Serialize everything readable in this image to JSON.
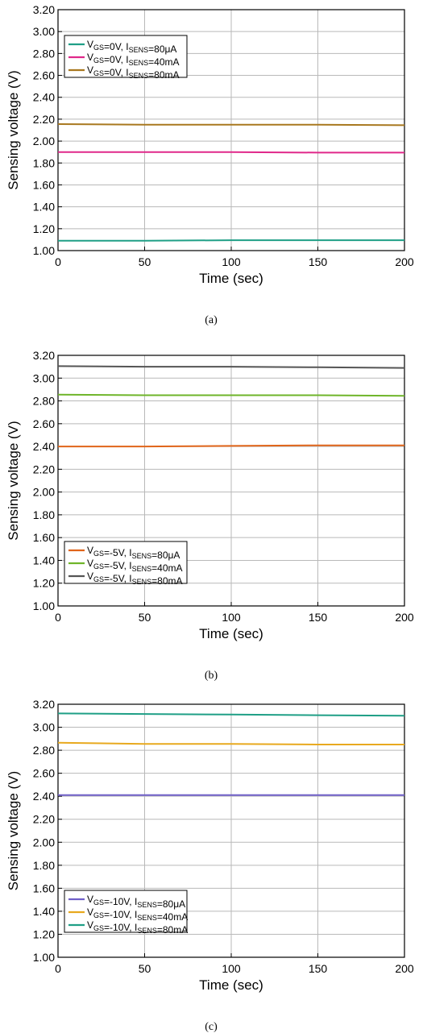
{
  "chart_data": [
    {
      "type": "line",
      "caption": "(a)",
      "xlabel": "Time (sec)",
      "ylabel": "Sensing voltage (V)",
      "xlim": [
        0,
        200
      ],
      "ylim": [
        1.0,
        3.2
      ],
      "xticks": [
        "0",
        "50",
        "100",
        "150",
        "200"
      ],
      "yticks": [
        "1.00",
        "1.20",
        "1.40",
        "1.60",
        "1.80",
        "2.00",
        "2.20",
        "2.40",
        "2.60",
        "2.80",
        "3.00",
        "3.20"
      ],
      "grid": true,
      "legend_position": "top-left",
      "series": [
        {
          "vgs": "0V",
          "isens": "80μA",
          "color": "#1f9f86",
          "x": [
            0,
            50,
            100,
            150,
            200
          ],
          "values": [
            1.09,
            1.09,
            1.095,
            1.095,
            1.095
          ]
        },
        {
          "vgs": "0V",
          "isens": "40mA",
          "color": "#e0288a",
          "x": [
            0,
            50,
            100,
            150,
            200
          ],
          "values": [
            1.9,
            1.9,
            1.9,
            1.895,
            1.895
          ]
        },
        {
          "vgs": "0V",
          "isens": "80mA",
          "color": "#a8781f",
          "x": [
            0,
            50,
            100,
            150,
            200
          ],
          "values": [
            2.155,
            2.15,
            2.15,
            2.15,
            2.145
          ]
        }
      ]
    },
    {
      "type": "line",
      "caption": "(b)",
      "xlabel": "Time (sec)",
      "ylabel": "Sensing voltage (V)",
      "xlim": [
        0,
        200
      ],
      "ylim": [
        1.0,
        3.2
      ],
      "xticks": [
        "0",
        "50",
        "100",
        "150",
        "200"
      ],
      "yticks": [
        "1.00",
        "1.20",
        "1.40",
        "1.60",
        "1.80",
        "2.00",
        "2.20",
        "2.40",
        "2.60",
        "2.80",
        "3.00",
        "3.20"
      ],
      "grid": true,
      "legend_position": "bottom-left",
      "series": [
        {
          "vgs": "-5V",
          "isens": "80μA",
          "color": "#e0651a",
          "x": [
            0,
            50,
            100,
            150,
            200
          ],
          "values": [
            2.4,
            2.4,
            2.405,
            2.41,
            2.41
          ]
        },
        {
          "vgs": "-5V",
          "isens": "40mA",
          "color": "#6fb52a",
          "x": [
            0,
            50,
            100,
            150,
            200
          ],
          "values": [
            2.855,
            2.85,
            2.85,
            2.85,
            2.845
          ]
        },
        {
          "vgs": "-5V",
          "isens": "80mA",
          "color": "#555555",
          "x": [
            0,
            50,
            100,
            150,
            200
          ],
          "values": [
            3.105,
            3.1,
            3.1,
            3.095,
            3.09
          ]
        }
      ]
    },
    {
      "type": "line",
      "caption": "(c)",
      "xlabel": "Time (sec)",
      "ylabel": "Sensing voltage (V)",
      "xlim": [
        0,
        200
      ],
      "ylim": [
        1.0,
        3.2
      ],
      "xticks": [
        "0",
        "50",
        "100",
        "150",
        "200"
      ],
      "yticks": [
        "1.00",
        "1.20",
        "1.40",
        "1.60",
        "1.80",
        "2.00",
        "2.20",
        "2.40",
        "2.60",
        "2.80",
        "3.00",
        "3.20"
      ],
      "grid": true,
      "legend_position": "bottom-left",
      "series": [
        {
          "vgs": "-10V",
          "isens": "80μA",
          "color": "#6f5fc8",
          "x": [
            0,
            50,
            100,
            150,
            200
          ],
          "values": [
            2.41,
            2.41,
            2.41,
            2.41,
            2.41
          ]
        },
        {
          "vgs": "-10V",
          "isens": "40mA",
          "color": "#e8a91e",
          "x": [
            0,
            50,
            100,
            150,
            200
          ],
          "values": [
            2.865,
            2.855,
            2.855,
            2.85,
            2.85
          ]
        },
        {
          "vgs": "-10V",
          "isens": "80mA",
          "color": "#1f9f86",
          "x": [
            0,
            50,
            100,
            150,
            200
          ],
          "values": [
            3.12,
            3.115,
            3.11,
            3.105,
            3.1
          ]
        }
      ]
    }
  ]
}
